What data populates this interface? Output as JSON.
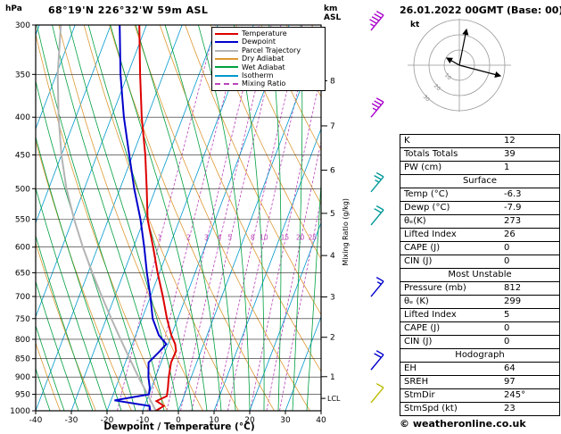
{
  "header": {
    "station": "68°19'N 226°32'W 59m ASL",
    "datetime": "26.01.2022 00GMT (Base: 00)",
    "pressure_unit": "hPa",
    "altitude_unit": "km ASL",
    "copyright": "© weatheronline.co.uk"
  },
  "legend": [
    {
      "label": "Temperature",
      "color": "#dd0000",
      "dash": false
    },
    {
      "label": "Dewpoint",
      "color": "#0000cc",
      "dash": false
    },
    {
      "label": "Parcel Trajectory",
      "color": "#b4b4b4",
      "dash": false
    },
    {
      "label": "Dry Adiabat",
      "color": "#dd9933",
      "dash": false
    },
    {
      "label": "Wet Adiabat",
      "color": "#00a040",
      "dash": false
    },
    {
      "label": "Isotherm",
      "color": "#0099cc",
      "dash": false
    },
    {
      "label": "Mixing Ratio",
      "color": "#bb44bb",
      "dash": true
    }
  ],
  "chart_data": {
    "type": "line",
    "subtype": "skewt-log-p",
    "title": "68°19'N 226°32'W 59m ASL",
    "xlabel": "Dewpoint / Temperature (°C)",
    "ylabel": "hPa",
    "p_range": [
      300,
      1000
    ],
    "t_range": [
      -40,
      40
    ],
    "x_ticks": [
      -40,
      -30,
      -20,
      -10,
      0,
      10,
      20,
      30,
      40
    ],
    "pressure_levels": [
      300,
      350,
      400,
      450,
      500,
      550,
      600,
      650,
      700,
      750,
      800,
      850,
      900,
      950,
      1000
    ],
    "km_ticks": [
      {
        "km": 8,
        "p": 357
      },
      {
        "km": 7,
        "p": 411
      },
      {
        "km": 6,
        "p": 472
      },
      {
        "km": 5,
        "p": 540
      },
      {
        "km": 4,
        "p": 616
      },
      {
        "km": 3,
        "p": 701
      },
      {
        "km": 2,
        "p": 795
      },
      {
        "km": 1,
        "p": 899
      }
    ],
    "lcl": {
      "label": "LCL",
      "p": 962
    },
    "mixing_ratio_lines": [
      1,
      2,
      3,
      4,
      5,
      8,
      10,
      15,
      20,
      25
    ],
    "mixing_ratio_label_p": 590,
    "mixing_ratio_axis_label": "Mixing Ratio (g/kg)",
    "colors": {
      "temperature": "#dd0000",
      "dewpoint": "#0000cc",
      "parcel": "#b4b4b4",
      "dry_adiabat": "#dd9933",
      "wet_adiabat": "#00a040",
      "isotherm": "#0099cc",
      "mixing_ratio": "#bb44bb",
      "grid": "#222222"
    },
    "series": [
      {
        "name": "Temperature",
        "color": "#dd0000",
        "points": [
          [
            1000,
            -6.3
          ],
          [
            985,
            -4.6
          ],
          [
            970,
            -7.2
          ],
          [
            955,
            -4.8
          ],
          [
            930,
            -5.4
          ],
          [
            900,
            -6.3
          ],
          [
            860,
            -7.2
          ],
          [
            830,
            -7.0
          ],
          [
            812,
            -8.0
          ],
          [
            790,
            -10.0
          ],
          [
            750,
            -13.0
          ],
          [
            700,
            -16.5
          ],
          [
            650,
            -20.5
          ],
          [
            600,
            -24.5
          ],
          [
            550,
            -29.0
          ],
          [
            500,
            -32.5
          ],
          [
            450,
            -36.5
          ],
          [
            400,
            -41.5
          ],
          [
            350,
            -46.5
          ],
          [
            300,
            -52.0
          ]
        ]
      },
      {
        "name": "Dewpoint",
        "color": "#0000cc",
        "points": [
          [
            1000,
            -7.9
          ],
          [
            985,
            -8.6
          ],
          [
            968,
            -19.0
          ],
          [
            950,
            -10.0
          ],
          [
            930,
            -10.5
          ],
          [
            900,
            -12.0
          ],
          [
            860,
            -13.5
          ],
          [
            830,
            -11.5
          ],
          [
            812,
            -10.5
          ],
          [
            790,
            -13.5
          ],
          [
            750,
            -17.0
          ],
          [
            700,
            -20.0
          ],
          [
            650,
            -23.5
          ],
          [
            600,
            -27.0
          ],
          [
            550,
            -31.0
          ],
          [
            500,
            -36.0
          ],
          [
            450,
            -41.0
          ],
          [
            400,
            -46.5
          ],
          [
            350,
            -52.0
          ],
          [
            300,
            -57.5
          ]
        ]
      },
      {
        "name": "Parcel Trajectory",
        "color": "#b4b4b4",
        "points": [
          [
            1000,
            -6.3
          ],
          [
            960,
            -9.6
          ],
          [
            950,
            -10.4
          ],
          [
            900,
            -14.8
          ],
          [
            850,
            -19.2
          ],
          [
            800,
            -23.8
          ],
          [
            750,
            -28.6
          ],
          [
            700,
            -33.6
          ],
          [
            650,
            -38.8
          ],
          [
            600,
            -44.2
          ],
          [
            550,
            -49.6
          ],
          [
            500,
            -55.0
          ],
          [
            450,
            -60.0
          ],
          [
            400,
            -64.8
          ],
          [
            350,
            -69.6
          ],
          [
            300,
            -74.0
          ]
        ]
      }
    ],
    "wind_barbs": [
      {
        "p": 305,
        "speed_kt": 45,
        "color": "#aa00cc"
      },
      {
        "p": 400,
        "speed_kt": 35,
        "color": "#aa00cc"
      },
      {
        "p": 505,
        "speed_kt": 25,
        "color": "#009999"
      },
      {
        "p": 560,
        "speed_kt": 20,
        "color": "#009999"
      },
      {
        "p": 700,
        "speed_kt": 15,
        "color": "#0000cc"
      },
      {
        "p": 880,
        "speed_kt": 20,
        "color": "#0000cc"
      },
      {
        "p": 975,
        "speed_kt": 10,
        "color": "#bbbb00"
      }
    ]
  },
  "hodograph": {
    "unit": "kt",
    "ring_labels": [
      10,
      20,
      30
    ],
    "vectors": [
      {
        "dx": 8,
        "dy": -40
      },
      {
        "dx": 46,
        "dy": 12
      },
      {
        "dx": -14,
        "dy": -8
      }
    ]
  },
  "table": {
    "rows": [
      {
        "label": "K",
        "value": "12"
      },
      {
        "label": "Totals Totals",
        "value": "39"
      },
      {
        "label": "PW (cm)",
        "value": "1"
      },
      {
        "header": "Surface"
      },
      {
        "label": "Temp (°C)",
        "value": "-6.3"
      },
      {
        "label": "Dewp (°C)",
        "value": "-7.9"
      },
      {
        "label": "θₑ(K)",
        "value": "273"
      },
      {
        "label": "Lifted Index",
        "value": "26"
      },
      {
        "label": "CAPE (J)",
        "value": "0"
      },
      {
        "label": "CIN (J)",
        "value": "0"
      },
      {
        "header": "Most Unstable"
      },
      {
        "label": "Pressure (mb)",
        "value": "812"
      },
      {
        "label": "θₑ (K)",
        "value": "299"
      },
      {
        "label": "Lifted Index",
        "value": "5"
      },
      {
        "label": "CAPE (J)",
        "value": "0"
      },
      {
        "label": "CIN (J)",
        "value": "0"
      },
      {
        "header": "Hodograph"
      },
      {
        "label": "EH",
        "value": "64"
      },
      {
        "label": "SREH",
        "value": "97"
      },
      {
        "label": "StmDir",
        "value": "245°"
      },
      {
        "label": "StmSpd (kt)",
        "value": "23"
      }
    ]
  }
}
